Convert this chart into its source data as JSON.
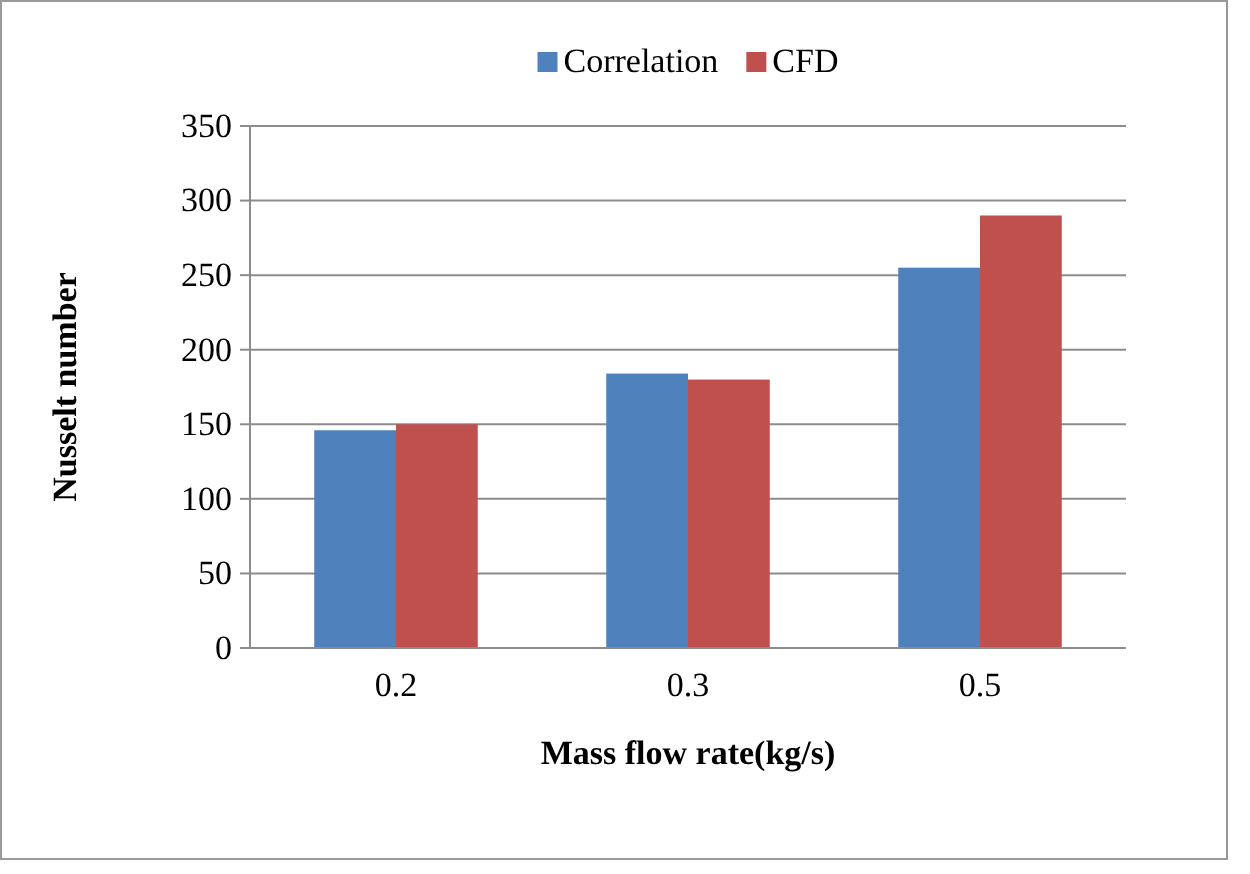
{
  "chart_data": {
    "type": "bar",
    "xlabel": "Mass flow rate(kg/s)",
    "ylabel": "Nusselt number",
    "categories": [
      "0.2",
      "0.3",
      "0.5"
    ],
    "series": [
      {
        "name": "Correlation",
        "color": "#4f81bd",
        "values": [
          146,
          184,
          255
        ]
      },
      {
        "name": "CFD",
        "color": "#c0504d",
        "values": [
          150,
          180,
          290
        ]
      }
    ],
    "ylim": [
      0,
      350
    ],
    "yticks": [
      0,
      50,
      100,
      150,
      200,
      250,
      300,
      350
    ],
    "grid": "y",
    "legend": "top"
  }
}
